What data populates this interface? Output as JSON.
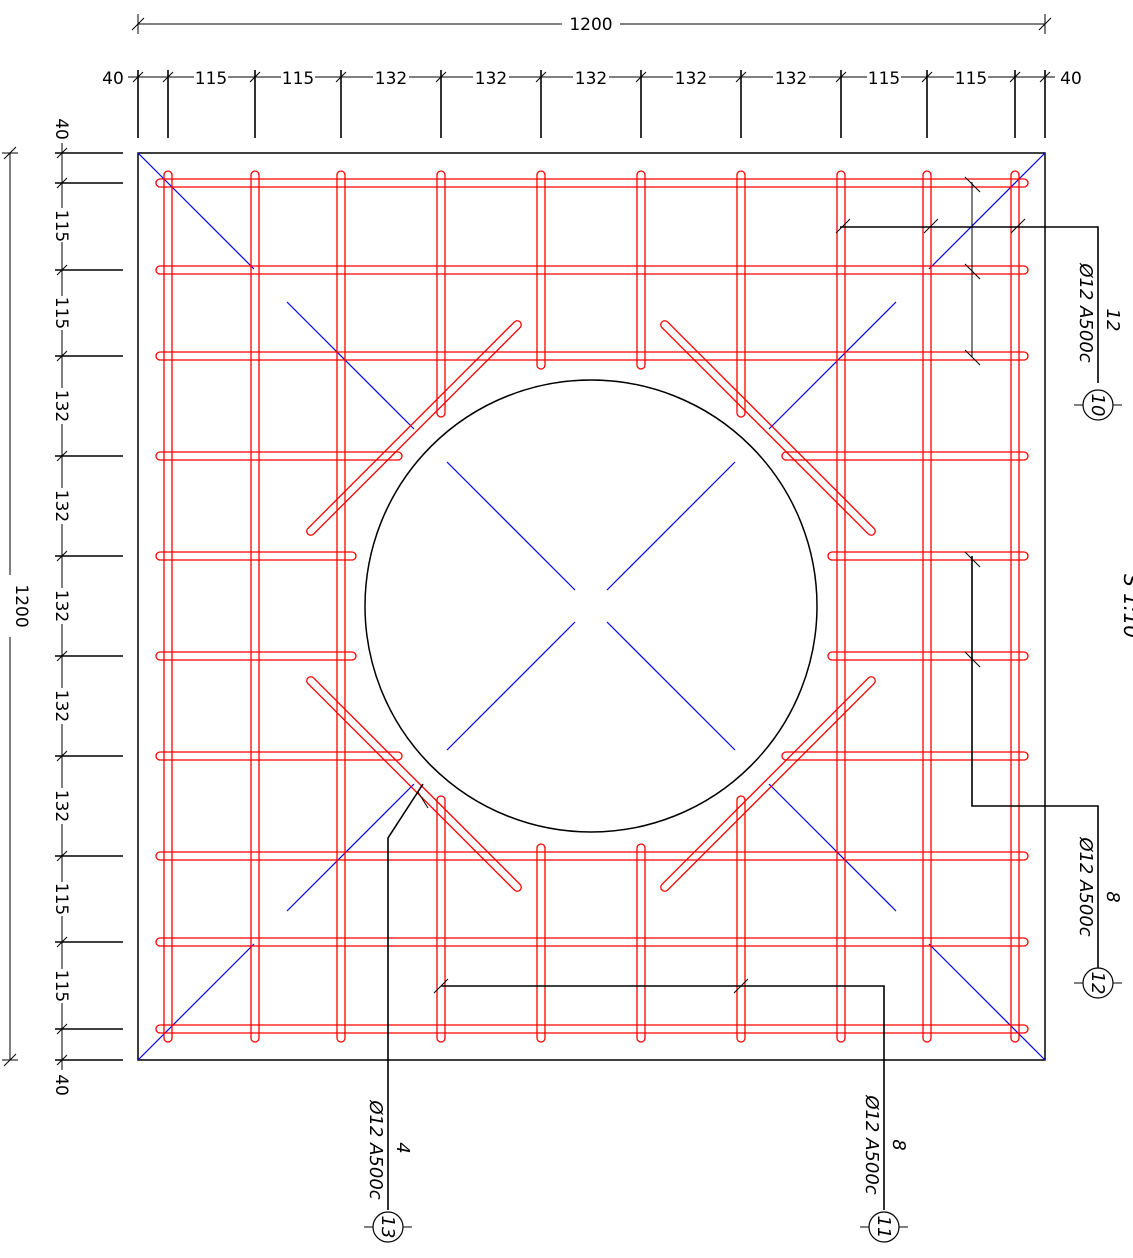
{
  "drawing": {
    "top_dimensions": {
      "overall": "1200",
      "segments": [
        "40",
        "115",
        "115",
        "132",
        "132",
        "132",
        "132",
        "132",
        "115",
        "115",
        "40"
      ]
    },
    "left_dimensions": {
      "overall": "1200",
      "segments": [
        "40",
        "115",
        "115",
        "132",
        "132",
        "132",
        "132",
        "132",
        "115",
        "115",
        "40"
      ]
    },
    "callouts": [
      {
        "id": "10",
        "count": "12",
        "spec": "Ø12 A500c"
      },
      {
        "id": "12",
        "count": "8",
        "spec": "Ø12 A500c"
      },
      {
        "id": "13",
        "count": "4",
        "spec": "Ø12 A500c"
      },
      {
        "id": "11",
        "count": "8",
        "spec": "Ø12 A500c"
      }
    ],
    "scale_fragment": "S 1:10",
    "colors": {
      "rebar": "#ff0000",
      "diagonal": "#0000ff",
      "outline": "#000000"
    }
  }
}
